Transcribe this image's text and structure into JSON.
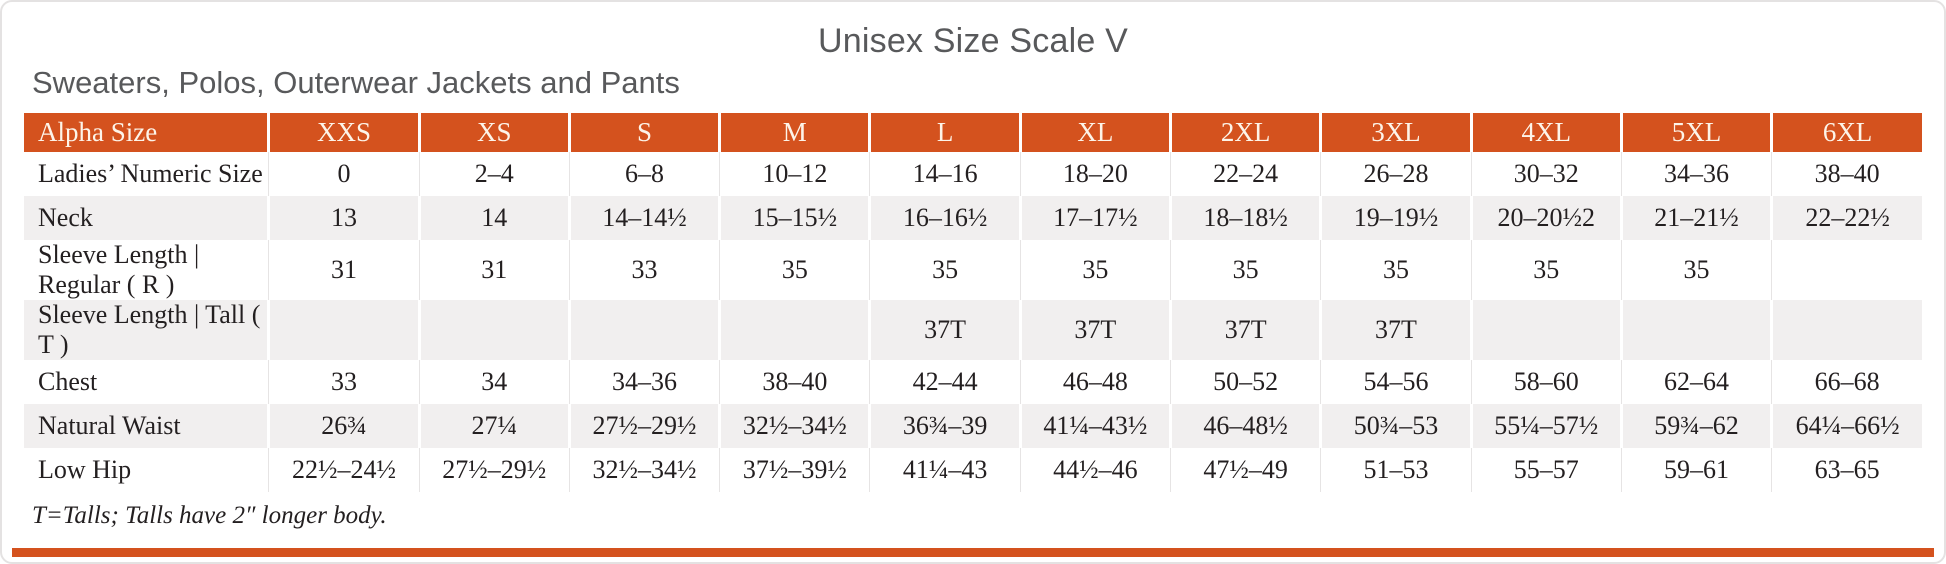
{
  "page": {
    "title": "Unisex Size Scale V",
    "subtitle": "Sweaters, Polos, Outerwear Jackets and Pants",
    "footnote": "T=Talls; Talls have 2″ longer body."
  },
  "colors": {
    "accent_orange": "#d4521e",
    "header_text": "#fdf4e9",
    "title_gray": "#58595b",
    "body_text": "#231f20",
    "alt_row_bg": "#f1efef"
  },
  "table": {
    "columns": [
      "Alpha Size",
      "XXS",
      "XS",
      "S",
      "M",
      "L",
      "XL",
      "2XL",
      "3XL",
      "4XL",
      "5XL",
      "6XL"
    ],
    "rows": [
      {
        "label": "Ladies’ Numeric Size",
        "cells": [
          "0",
          "2–4",
          "6–8",
          "10–12",
          "14–16",
          "18–20",
          "22–24",
          "26–28",
          "30–32",
          "34–36",
          "38–40"
        ]
      },
      {
        "label": "Neck",
        "cells": [
          "13",
          "14",
          "14–14½",
          "15–15½",
          "16–16½",
          "17–17½",
          "18–18½",
          "19–19½",
          "20–20½2",
          "21–21½",
          "22–22½"
        ]
      },
      {
        "label": "Sleeve Length | Regular ( R )",
        "cells": [
          "31",
          "31",
          "33",
          "35",
          "35",
          "35",
          "35",
          "35",
          "35",
          "35",
          ""
        ]
      },
      {
        "label": "Sleeve Length | Tall ( T )",
        "cells": [
          "",
          "",
          "",
          "",
          "37T",
          "37T",
          "37T",
          "37T",
          "",
          "",
          ""
        ]
      },
      {
        "label": "Chest",
        "cells": [
          "33",
          "34",
          "34–36",
          "38–40",
          "42–44",
          "46–48",
          "50–52",
          "54–56",
          "58–60",
          "62–64",
          "66–68"
        ]
      },
      {
        "label": "Natural Waist",
        "cells": [
          "26¾",
          "27¼",
          "27½–29½",
          "32½–34½",
          "36¾–39",
          "41¼–43½",
          "46–48½",
          "50¾–53",
          "55¼–57½",
          "59¾–62",
          "64¼–66½"
        ]
      },
      {
        "label": "Low Hip",
        "cells": [
          "22½–24½",
          "27½–29½",
          "32½–34½",
          "37½–39½",
          "41¼–43",
          "44½–46",
          "47½–49",
          "51–53",
          "55–57",
          "59–61",
          "63–65"
        ]
      }
    ]
  }
}
